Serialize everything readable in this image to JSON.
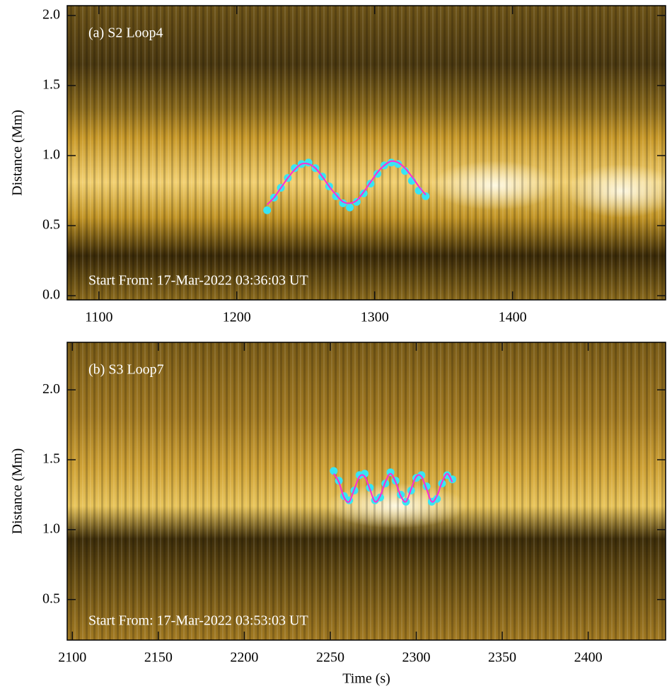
{
  "chart_data": [
    {
      "type": "scatter",
      "annotations": [
        "(a) S2 Loop4",
        "Start From: 17-Mar-2022 03:36:03 UT"
      ],
      "y_label": "Distance (Mm)",
      "xlim": [
        1077,
        1511
      ],
      "ylim": [
        -0.03,
        2.07
      ],
      "xticks": [
        1100,
        1200,
        1300,
        1400
      ],
      "yticks": [
        {
          "value": 0,
          "label": "0.0"
        },
        0.5,
        {
          "value": 1,
          "label": "1.0"
        },
        1.5,
        {
          "value": 2,
          "label": "2.0"
        }
      ],
      "series": [
        {
          "kind": "points",
          "color": "#38e4f4",
          "x": [
            1222,
            1227,
            1232,
            1237,
            1242,
            1247,
            1252,
            1257,
            1262,
            1267,
            1272,
            1277,
            1282,
            1287,
            1292,
            1297,
            1302,
            1307,
            1312,
            1317,
            1322,
            1327,
            1332,
            1337
          ],
          "values": [
            0.61,
            0.7,
            0.77,
            0.84,
            0.91,
            0.94,
            0.95,
            0.91,
            0.85,
            0.78,
            0.71,
            0.66,
            0.63,
            0.67,
            0.73,
            0.8,
            0.87,
            0.93,
            0.95,
            0.94,
            0.89,
            0.82,
            0.75,
            0.71
          ]
        },
        {
          "kind": "line",
          "color": "#ff2ad4",
          "x": [
            1222,
            1227,
            1232,
            1237,
            1242,
            1247,
            1252,
            1257,
            1262,
            1267,
            1272,
            1277,
            1282,
            1287,
            1292,
            1297,
            1302,
            1307,
            1312,
            1317,
            1322,
            1327,
            1332,
            1337
          ],
          "values": [
            0.65,
            0.7,
            0.77,
            0.84,
            0.9,
            0.94,
            0.94,
            0.91,
            0.85,
            0.78,
            0.72,
            0.67,
            0.66,
            0.68,
            0.74,
            0.81,
            0.88,
            0.93,
            0.96,
            0.95,
            0.91,
            0.85,
            0.78,
            0.72
          ]
        }
      ]
    },
    {
      "type": "scatter",
      "annotations": [
        "(b) S3 Loop7",
        "Start From: 17-Mar-2022 03:53:03 UT"
      ],
      "y_label": "Distance (Mm)",
      "x_label": "Time (s)",
      "xlim": [
        2097,
        2445
      ],
      "ylim": [
        0.21,
        2.34
      ],
      "xticks": [
        2100,
        2150,
        2200,
        2250,
        2300,
        2350,
        2400
      ],
      "yticks": [
        0.5,
        {
          "value": 1,
          "label": "1.0"
        },
        1.5,
        {
          "value": 2,
          "label": "2.0"
        }
      ],
      "series": [
        {
          "kind": "points",
          "color": "#38e4f4",
          "x": [
            2252,
            2255,
            2258,
            2261,
            2264,
            2267,
            2270,
            2273,
            2276,
            2279,
            2282,
            2285,
            2288,
            2291,
            2294,
            2297,
            2300,
            2303,
            2306,
            2309,
            2312,
            2315,
            2318,
            2321
          ],
          "values": [
            1.42,
            1.35,
            1.24,
            1.21,
            1.28,
            1.39,
            1.4,
            1.3,
            1.21,
            1.23,
            1.33,
            1.41,
            1.35,
            1.25,
            1.2,
            1.28,
            1.37,
            1.39,
            1.31,
            1.2,
            1.22,
            1.33,
            1.39,
            1.36
          ]
        },
        {
          "kind": "line",
          "color": "#ff2ad4",
          "x": [
            2252,
            2255,
            2258,
            2261,
            2264,
            2267,
            2270,
            2273,
            2276,
            2279,
            2282,
            2285,
            2288,
            2291,
            2294,
            2297,
            2300,
            2303,
            2306,
            2309,
            2312,
            2315,
            2318,
            2321
          ],
          "values": [
            1.4,
            1.34,
            1.23,
            1.2,
            1.29,
            1.38,
            1.38,
            1.29,
            1.2,
            1.24,
            1.34,
            1.4,
            1.34,
            1.24,
            1.2,
            1.29,
            1.38,
            1.38,
            1.29,
            1.2,
            1.24,
            1.34,
            1.4,
            1.34
          ]
        }
      ]
    }
  ]
}
